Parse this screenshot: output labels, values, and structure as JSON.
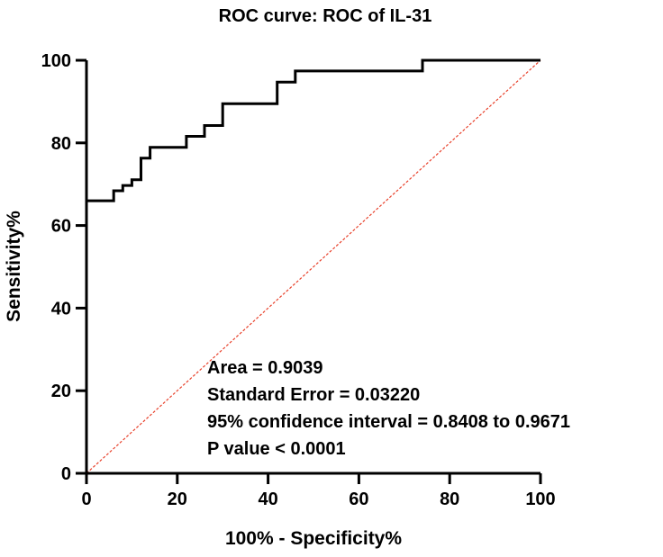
{
  "chart_data": {
    "type": "line",
    "title": "ROC curve: ROC of IL-31",
    "xlabel": "100% - Specificity%",
    "ylabel": "Sensitivity%",
    "xlim": [
      0,
      100
    ],
    "ylim": [
      0,
      100
    ],
    "xticks": [
      0,
      20,
      40,
      60,
      80,
      100
    ],
    "yticks": [
      0,
      20,
      40,
      60,
      80,
      100
    ],
    "grid": false,
    "series": [
      {
        "name": "ROC of IL-31",
        "style": "step",
        "color": "#000000",
        "x": [
          0,
          6,
          6,
          8,
          8,
          10,
          10,
          12,
          12,
          14,
          14,
          22,
          22,
          26,
          26,
          30,
          30,
          42,
          42,
          46,
          46,
          74,
          74,
          100
        ],
        "y": [
          66,
          66,
          68.4,
          68.4,
          69.7,
          69.7,
          71.1,
          71.1,
          76.3,
          76.3,
          78.9,
          78.9,
          81.6,
          81.6,
          84.2,
          84.2,
          89.5,
          89.5,
          94.7,
          94.7,
          97.4,
          97.4,
          100,
          100
        ]
      },
      {
        "name": "Reference line",
        "style": "dashed",
        "color": "#e8402a",
        "x": [
          0,
          100
        ],
        "y": [
          0,
          100
        ]
      }
    ],
    "annotations": [
      "Area = 0.9039",
      "Standard Error = 0.03220",
      "95% confidence interval = 0.8408 to 0.9671",
      "P value < 0.0001"
    ]
  }
}
